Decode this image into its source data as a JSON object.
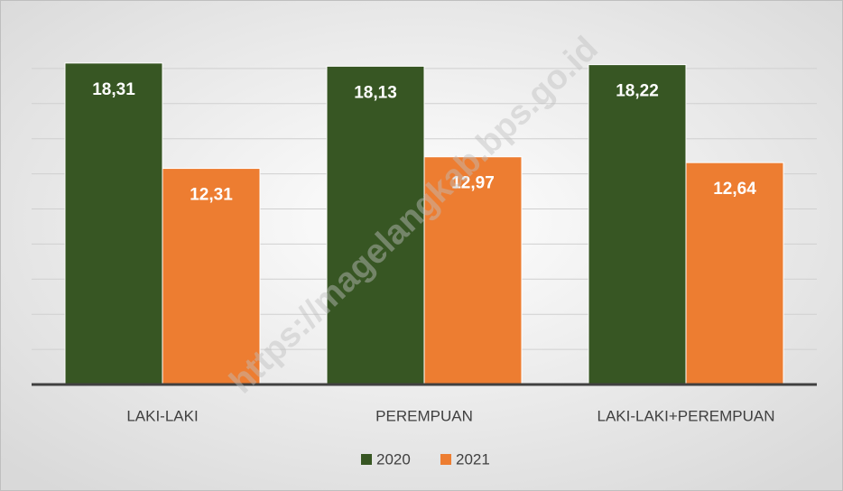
{
  "chart_data": {
    "type": "bar",
    "categories": [
      "LAKI-LAKI",
      "PEREMPUAN",
      "LAKI-LAKI+PEREMPUAN"
    ],
    "series": [
      {
        "name": "2020",
        "color": "#375623",
        "values": [
          18.31,
          18.13,
          18.22
        ],
        "value_labels": [
          "18,31",
          "18,13",
          "18,22"
        ]
      },
      {
        "name": "2021",
        "color": "#ed7d31",
        "values": [
          12.31,
          12.97,
          12.64
        ],
        "value_labels": [
          "12,31",
          "12,97",
          "12,64"
        ]
      }
    ],
    "ylim": [
      0,
      20
    ],
    "yticks": [
      0,
      2,
      4,
      6,
      8,
      10,
      12,
      14,
      16,
      18
    ],
    "grid": true,
    "legend": "bottom",
    "watermark": "https://magelangkab.bps.go.id"
  }
}
